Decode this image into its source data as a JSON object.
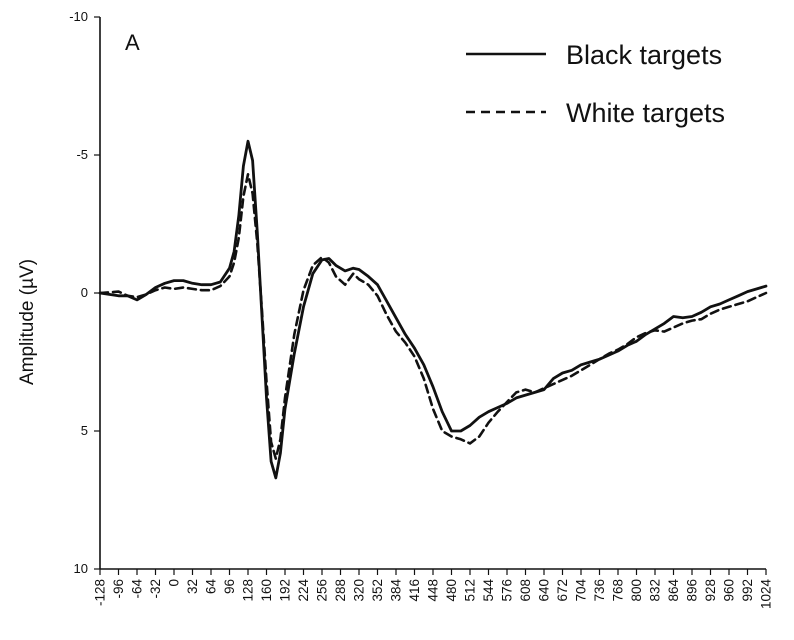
{
  "chart_data": {
    "type": "line",
    "panel_label": "A",
    "xlabel": "",
    "ylabel": "Amplitude (µV)",
    "y_inverted": true,
    "ylim": [
      -10,
      10
    ],
    "xlim": [
      -128,
      1024
    ],
    "y_ticks": [
      -10,
      -5,
      0,
      5,
      10
    ],
    "y_tick_labels": [
      "-10",
      "-5",
      "0",
      "5",
      "10"
    ],
    "x_ticks": [
      -128,
      -96,
      -64,
      -32,
      0,
      32,
      64,
      96,
      128,
      160,
      192,
      224,
      256,
      288,
      320,
      352,
      384,
      416,
      448,
      480,
      512,
      544,
      576,
      608,
      640,
      672,
      704,
      736,
      768,
      800,
      832,
      864,
      896,
      928,
      960,
      992,
      1024
    ],
    "x_tick_labels": [
      "-128",
      "-96",
      "-64",
      "-32",
      "0",
      "32",
      "64",
      "96",
      "128",
      "160",
      "192",
      "224",
      "256",
      "288",
      "320",
      "352",
      "384",
      "416",
      "448",
      "480",
      "512",
      "544",
      "576",
      "608",
      "640",
      "672",
      "704",
      "736",
      "768",
      "800",
      "832",
      "864",
      "896",
      "928",
      "960",
      "992",
      "1024"
    ],
    "legend_position": "top-right",
    "grid": false,
    "series": [
      {
        "name": "Black targets",
        "style": "solid",
        "color": "#111111",
        "points": [
          [
            -128,
            0.0
          ],
          [
            -96,
            0.1
          ],
          [
            -80,
            0.1
          ],
          [
            -64,
            0.25
          ],
          [
            -48,
            0.05
          ],
          [
            -32,
            -0.2
          ],
          [
            -16,
            -0.35
          ],
          [
            0,
            -0.45
          ],
          [
            16,
            -0.45
          ],
          [
            32,
            -0.35
          ],
          [
            48,
            -0.3
          ],
          [
            64,
            -0.3
          ],
          [
            80,
            -0.4
          ],
          [
            96,
            -0.9
          ],
          [
            104,
            -1.5
          ],
          [
            112,
            -2.8
          ],
          [
            120,
            -4.6
          ],
          [
            128,
            -5.5
          ],
          [
            136,
            -4.8
          ],
          [
            144,
            -2.2
          ],
          [
            152,
            0.8
          ],
          [
            160,
            3.8
          ],
          [
            168,
            6.1
          ],
          [
            176,
            6.7
          ],
          [
            184,
            5.8
          ],
          [
            192,
            4.2
          ],
          [
            208,
            2.2
          ],
          [
            224,
            0.5
          ],
          [
            240,
            -0.7
          ],
          [
            256,
            -1.2
          ],
          [
            268,
            -1.25
          ],
          [
            280,
            -1.0
          ],
          [
            296,
            -0.8
          ],
          [
            310,
            -0.9
          ],
          [
            320,
            -0.85
          ],
          [
            336,
            -0.6
          ],
          [
            352,
            -0.3
          ],
          [
            368,
            0.3
          ],
          [
            384,
            0.9
          ],
          [
            400,
            1.5
          ],
          [
            416,
            2.0
          ],
          [
            432,
            2.6
          ],
          [
            448,
            3.4
          ],
          [
            464,
            4.3
          ],
          [
            480,
            5.0
          ],
          [
            496,
            5.0
          ],
          [
            512,
            4.8
          ],
          [
            528,
            4.5
          ],
          [
            544,
            4.3
          ],
          [
            560,
            4.15
          ],
          [
            576,
            4.0
          ],
          [
            592,
            3.8
          ],
          [
            608,
            3.7
          ],
          [
            624,
            3.6
          ],
          [
            640,
            3.5
          ],
          [
            656,
            3.1
          ],
          [
            672,
            2.9
          ],
          [
            688,
            2.8
          ],
          [
            704,
            2.6
          ],
          [
            720,
            2.5
          ],
          [
            736,
            2.4
          ],
          [
            752,
            2.25
          ],
          [
            768,
            2.1
          ],
          [
            784,
            1.9
          ],
          [
            800,
            1.75
          ],
          [
            816,
            1.5
          ],
          [
            832,
            1.3
          ],
          [
            848,
            1.1
          ],
          [
            864,
            0.85
          ],
          [
            880,
            0.9
          ],
          [
            896,
            0.85
          ],
          [
            912,
            0.7
          ],
          [
            928,
            0.5
          ],
          [
            944,
            0.4
          ],
          [
            960,
            0.25
          ],
          [
            976,
            0.1
          ],
          [
            992,
            -0.05
          ],
          [
            1008,
            -0.15
          ],
          [
            1024,
            -0.25
          ]
        ]
      },
      {
        "name": "White targets",
        "style": "dashed",
        "color": "#111111",
        "points": [
          [
            -128,
            0.0
          ],
          [
            -96,
            -0.05
          ],
          [
            -80,
            0.1
          ],
          [
            -64,
            0.15
          ],
          [
            -48,
            0.05
          ],
          [
            -32,
            -0.1
          ],
          [
            -16,
            -0.2
          ],
          [
            0,
            -0.15
          ],
          [
            16,
            -0.2
          ],
          [
            32,
            -0.15
          ],
          [
            48,
            -0.1
          ],
          [
            64,
            -0.1
          ],
          [
            80,
            -0.25
          ],
          [
            96,
            -0.6
          ],
          [
            104,
            -1.1
          ],
          [
            112,
            -2.0
          ],
          [
            120,
            -3.5
          ],
          [
            128,
            -4.3
          ],
          [
            136,
            -3.6
          ],
          [
            144,
            -1.8
          ],
          [
            152,
            0.6
          ],
          [
            160,
            3.2
          ],
          [
            168,
            5.4
          ],
          [
            176,
            6.0
          ],
          [
            184,
            5.3
          ],
          [
            192,
            3.8
          ],
          [
            208,
            1.5
          ],
          [
            224,
            -0.1
          ],
          [
            240,
            -1.0
          ],
          [
            256,
            -1.3
          ],
          [
            268,
            -1.1
          ],
          [
            280,
            -0.6
          ],
          [
            296,
            -0.3
          ],
          [
            310,
            -0.7
          ],
          [
            320,
            -0.5
          ],
          [
            336,
            -0.3
          ],
          [
            352,
            0.1
          ],
          [
            368,
            0.8
          ],
          [
            384,
            1.4
          ],
          [
            400,
            1.8
          ],
          [
            416,
            2.3
          ],
          [
            432,
            3.1
          ],
          [
            448,
            4.2
          ],
          [
            464,
            5.0
          ],
          [
            480,
            5.2
          ],
          [
            496,
            5.3
          ],
          [
            512,
            5.45
          ],
          [
            528,
            5.2
          ],
          [
            544,
            4.7
          ],
          [
            560,
            4.3
          ],
          [
            576,
            3.95
          ],
          [
            592,
            3.6
          ],
          [
            608,
            3.5
          ],
          [
            624,
            3.6
          ],
          [
            640,
            3.45
          ],
          [
            656,
            3.3
          ],
          [
            672,
            3.15
          ],
          [
            688,
            3.0
          ],
          [
            704,
            2.8
          ],
          [
            720,
            2.6
          ],
          [
            736,
            2.4
          ],
          [
            752,
            2.2
          ],
          [
            768,
            2.05
          ],
          [
            784,
            1.85
          ],
          [
            800,
            1.6
          ],
          [
            816,
            1.45
          ],
          [
            832,
            1.35
          ],
          [
            848,
            1.4
          ],
          [
            864,
            1.25
          ],
          [
            880,
            1.1
          ],
          [
            896,
            1.0
          ],
          [
            912,
            0.95
          ],
          [
            928,
            0.75
          ],
          [
            944,
            0.6
          ],
          [
            960,
            0.5
          ],
          [
            976,
            0.4
          ],
          [
            992,
            0.3
          ],
          [
            1008,
            0.15
          ],
          [
            1024,
            0.0
          ]
        ]
      }
    ]
  }
}
